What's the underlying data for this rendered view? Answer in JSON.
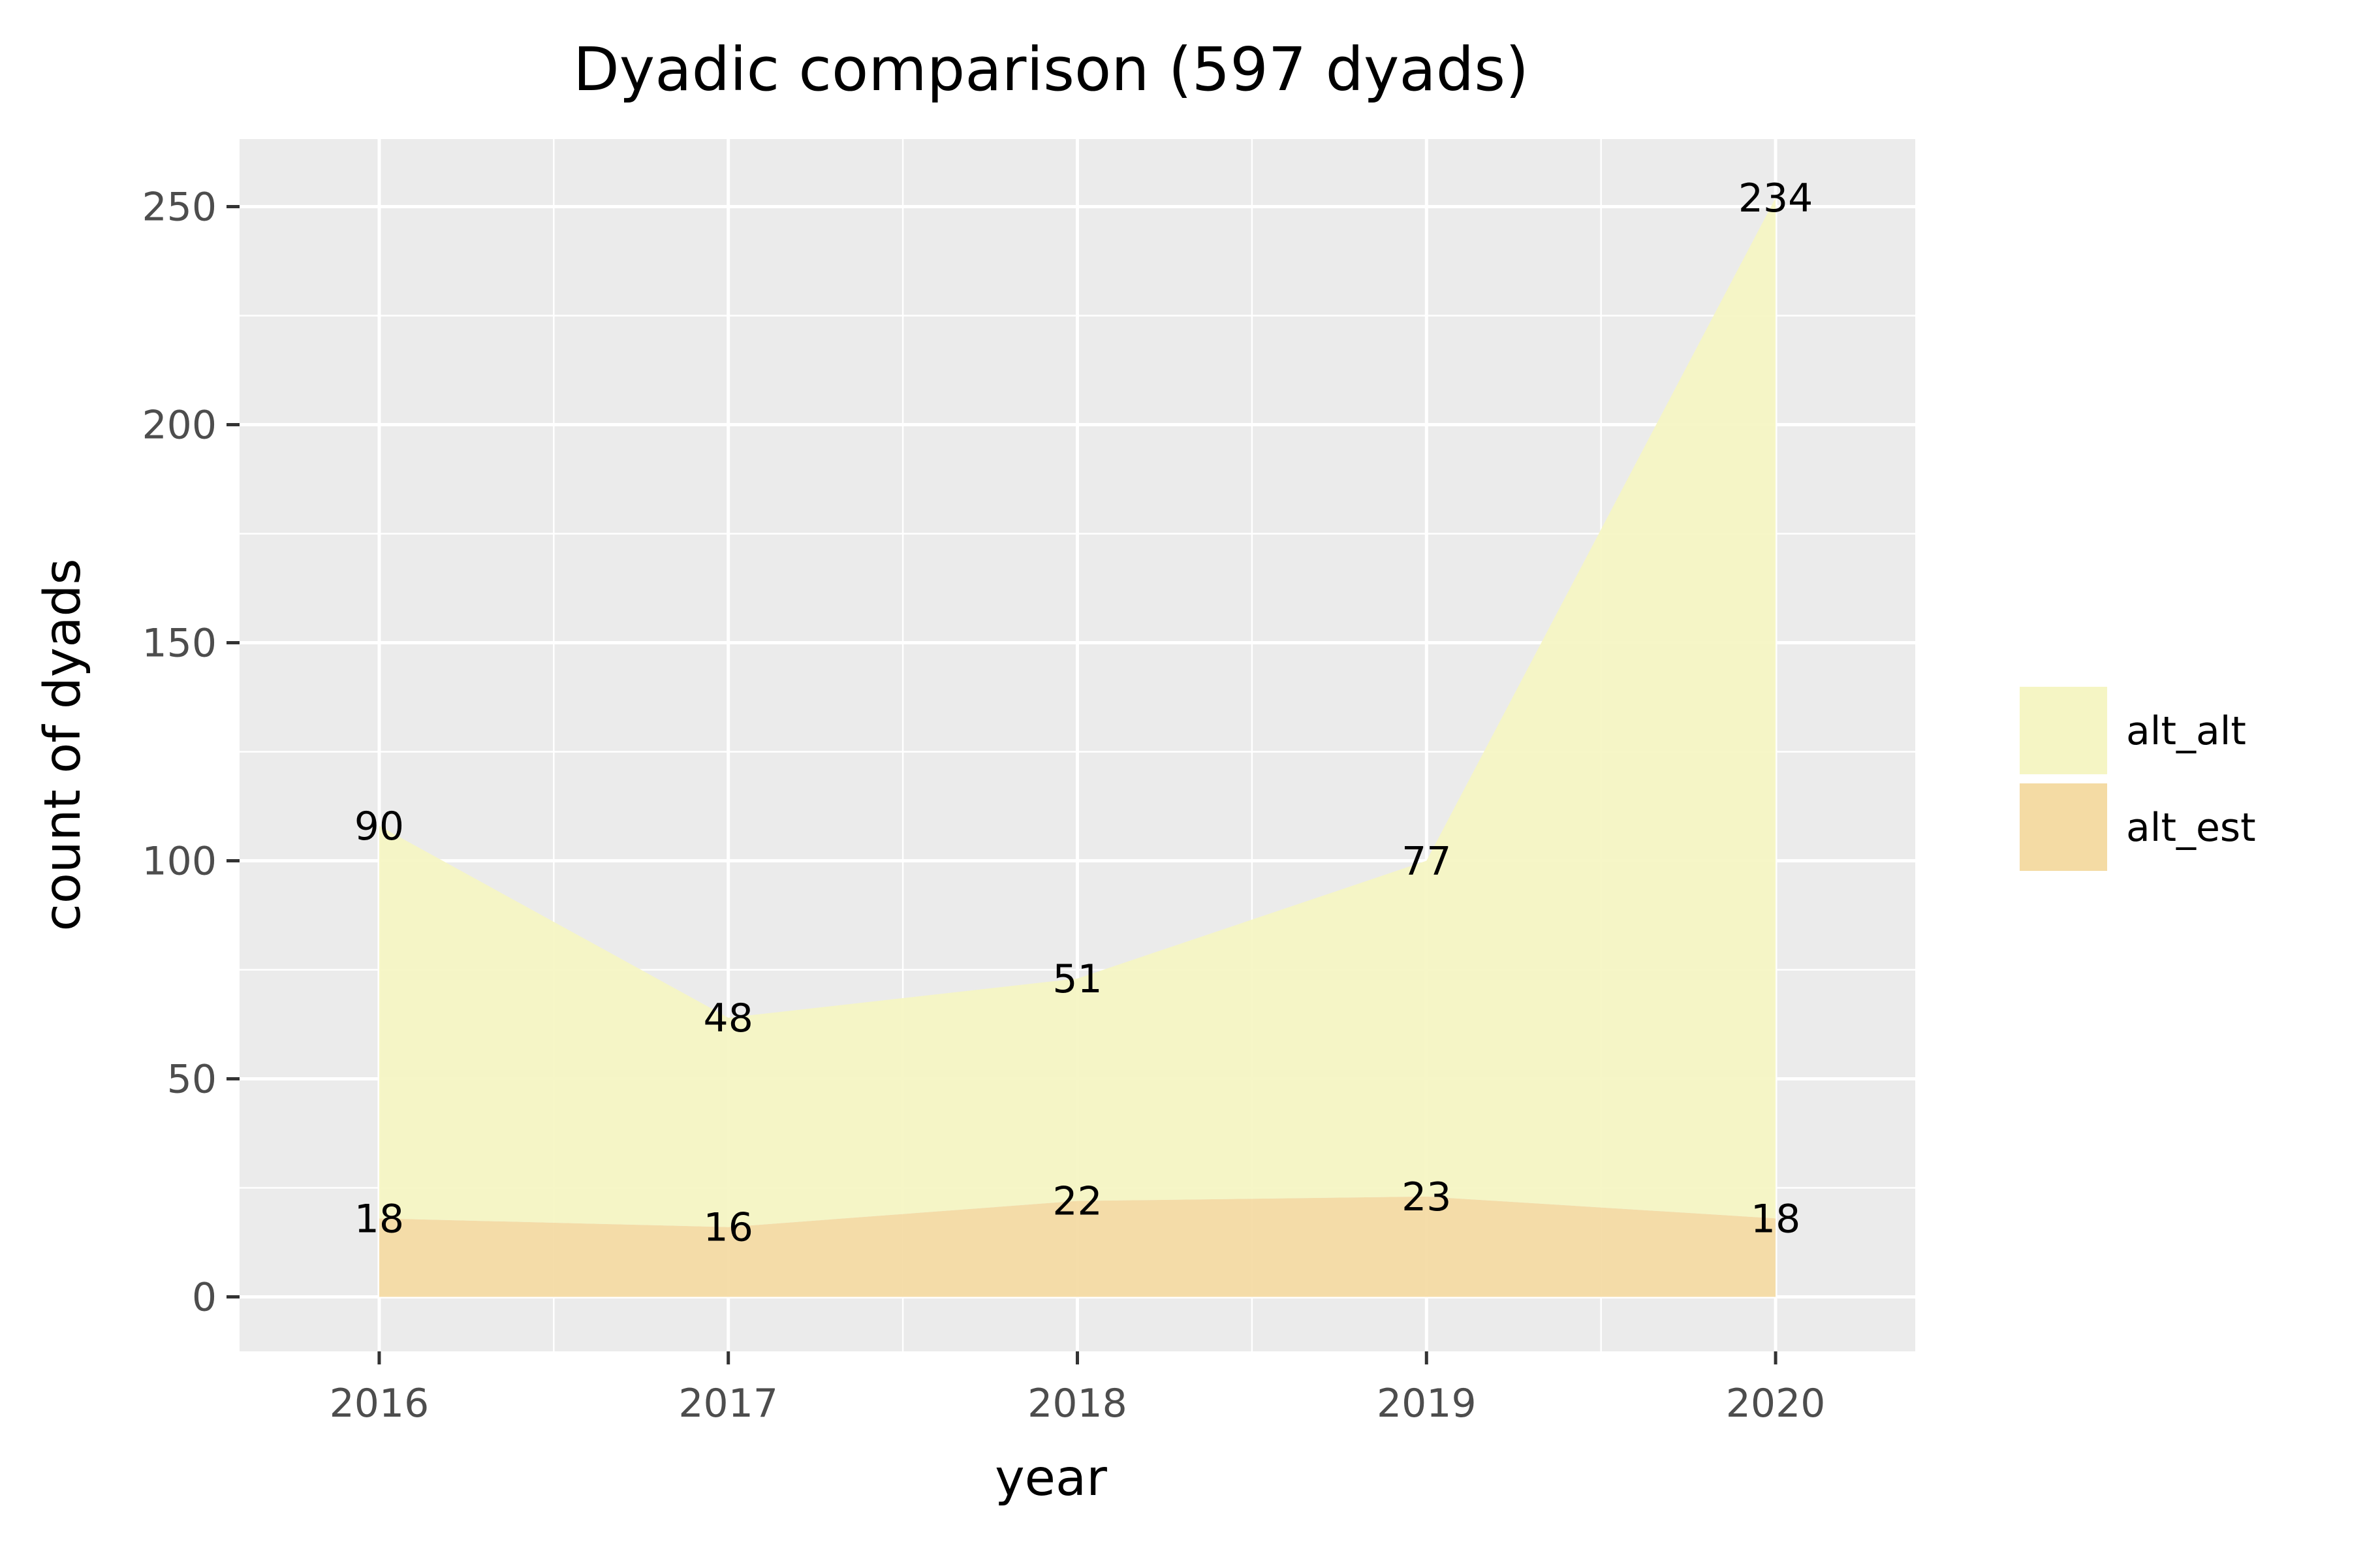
{
  "chart_data": {
    "type": "area",
    "stacked": true,
    "title": "Dyadic comparison (597 dyads)",
    "xlabel": "year",
    "ylabel": "count of dyads",
    "x": [
      2016,
      2017,
      2018,
      2019,
      2020
    ],
    "x_tick_labels": [
      "2016",
      "2017",
      "2018",
      "2019",
      "2020"
    ],
    "xlim": [
      2015.6,
      2020.4
    ],
    "ylim": [
      -12.5,
      265.5
    ],
    "y_ticks": [
      0,
      50,
      100,
      150,
      200,
      250
    ],
    "y_tick_labels": [
      "0",
      "50",
      "100",
      "150",
      "200",
      "250"
    ],
    "grid": true,
    "legend_position": "right",
    "series": [
      {
        "name": "alt_alt",
        "values": [
          90,
          48,
          51,
          77,
          234
        ],
        "labels": [
          "90",
          "48",
          "51",
          "77",
          "234"
        ],
        "color": "#f5f5c4"
      },
      {
        "name": "alt_est",
        "values": [
          18,
          16,
          22,
          23,
          18
        ],
        "labels": [
          "18",
          "16",
          "22",
          "23",
          "18"
        ],
        "color": "#f4dba4"
      }
    ],
    "panel_background": "#ebebeb"
  }
}
